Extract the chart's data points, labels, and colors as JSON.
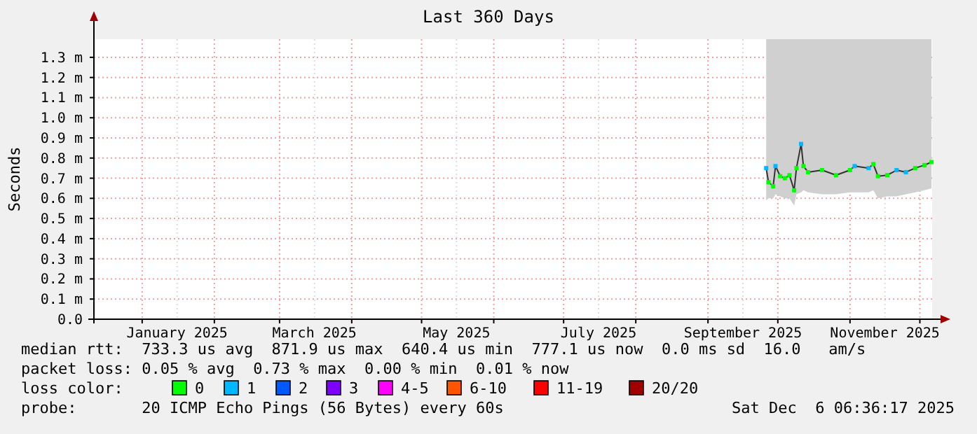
{
  "chart_data": {
    "type": "line",
    "title": "Last 360 Days",
    "ylabel": "Seconds",
    "xlim": [
      "2024-12-11T06:36",
      "2025-12-06T06:36"
    ],
    "xticks": [
      {
        "value": "2025-01-01",
        "label": null
      },
      {
        "value": "2025-01-16",
        "label": "January 2025"
      },
      {
        "value": "2025-02-01",
        "label": null
      },
      {
        "value": "2025-03-01",
        "label": null
      },
      {
        "value": "2025-03-16",
        "label": "March 2025"
      },
      {
        "value": "2025-04-01",
        "label": null
      },
      {
        "value": "2025-05-01",
        "label": null
      },
      {
        "value": "2025-05-16",
        "label": "May 2025"
      },
      {
        "value": "2025-06-01",
        "label": null
      },
      {
        "value": "2025-07-01",
        "label": null
      },
      {
        "value": "2025-07-16",
        "label": "July 2025"
      },
      {
        "value": "2025-08-01",
        "label": null
      },
      {
        "value": "2025-09-01",
        "label": null
      },
      {
        "value": "2025-09-16",
        "label": "September 2025"
      },
      {
        "value": "2025-10-01",
        "label": null
      },
      {
        "value": "2025-11-01",
        "label": null
      },
      {
        "value": "2025-11-16",
        "label": "November 2025"
      },
      {
        "value": "2025-12-01",
        "label": null
      }
    ],
    "ylim": [
      0,
      1.39
    ],
    "yticks": [
      {
        "value": 0,
        "label": "0.0"
      },
      {
        "value": 0.1,
        "label": "0.1 m"
      },
      {
        "value": 0.2,
        "label": "0.2 m"
      },
      {
        "value": 0.3,
        "label": "0.3 m"
      },
      {
        "value": 0.4,
        "label": "0.4 m"
      },
      {
        "value": 0.5,
        "label": "0.5 m"
      },
      {
        "value": 0.6,
        "label": "0.6 m"
      },
      {
        "value": 0.7,
        "label": "0.7 m"
      },
      {
        "value": 0.8,
        "label": "0.8 m"
      },
      {
        "value": 0.9,
        "label": "0.9 m"
      },
      {
        "value": 1.0,
        "label": "1.0 m"
      },
      {
        "value": 1.1,
        "label": "1.1 m"
      },
      {
        "value": 1.2,
        "label": "1.2 m"
      },
      {
        "value": 1.3,
        "label": "1.3 m"
      }
    ],
    "grid": true,
    "legend": "bottom",
    "legend_title": "loss color:",
    "x": [
      "2025-09-26",
      "2025-09-27",
      "2025-09-29",
      "2025-09-30",
      "2025-10-02",
      "2025-10-04",
      "2025-10-06",
      "2025-10-08",
      "2025-10-09",
      "2025-10-11",
      "2025-10-12",
      "2025-10-14",
      "2025-10-20",
      "2025-10-26",
      "2025-11-01",
      "2025-11-03",
      "2025-11-09",
      "2025-11-11",
      "2025-11-13",
      "2025-11-17",
      "2025-11-21",
      "2025-11-25",
      "2025-11-29",
      "2025-12-03",
      "2025-12-06"
    ],
    "series": [
      {
        "marker": "none",
        "color": "#333333",
        "values": [
          0.75,
          0.68,
          0.66,
          0.76,
          0.71,
          0.7,
          0.715,
          0.64,
          0.75,
          0.87,
          0.76,
          0.73,
          0.74,
          0.715,
          0.74,
          0.76,
          0.75,
          0.77,
          0.71,
          0.715,
          0.74,
          0.73,
          0.75,
          0.765,
          0.78
        ],
        "lower": [
          0.59,
          0.6,
          0.6,
          0.62,
          0.61,
          0.6,
          0.6,
          0.565,
          0.62,
          0.63,
          0.64,
          0.63,
          0.62,
          0.62,
          0.63,
          0.63,
          0.63,
          0.64,
          0.6,
          0.61,
          0.61,
          0.62,
          0.63,
          0.64,
          0.65
        ],
        "upper": [
          1.39,
          1.39,
          1.39,
          1.39,
          1.39,
          1.39,
          1.39,
          1.39,
          1.39,
          1.39,
          1.39,
          1.39,
          1.39,
          1.39,
          1.39,
          1.39,
          1.39,
          1.39,
          1.39,
          1.39,
          1.39,
          1.39,
          1.39,
          1.39,
          1.39
        ]
      },
      {
        "type": "scatter",
        "name": "0",
        "color": "#00ff00",
        "values": [
          null,
          0.68,
          0.66,
          null,
          0.71,
          0.7,
          0.715,
          0.64,
          0.75,
          null,
          0.76,
          0.73,
          0.74,
          0.715,
          0.74,
          null,
          null,
          0.77,
          0.71,
          0.715,
          null,
          null,
          0.75,
          0.765,
          0.78
        ]
      },
      {
        "type": "scatter",
        "name": "1",
        "color": "#00b8ff",
        "values": [
          0.75,
          null,
          null,
          0.76,
          null,
          null,
          null,
          null,
          null,
          0.87,
          null,
          null,
          null,
          null,
          null,
          0.76,
          0.75,
          null,
          null,
          null,
          0.74,
          0.73,
          null,
          null,
          null
        ]
      },
      {
        "type": "scatter",
        "name": "2",
        "color": "#0059ff",
        "values": [
          null,
          null,
          null,
          null,
          null,
          null,
          null,
          null,
          null,
          null,
          null,
          null,
          null,
          null,
          null,
          null,
          null,
          null,
          null,
          null,
          null,
          null,
          null,
          null,
          null
        ]
      },
      {
        "type": "scatter",
        "name": "3",
        "color": "#7e00ff",
        "values": [
          null,
          null,
          null,
          null,
          null,
          null,
          null,
          null,
          null,
          null,
          null,
          null,
          null,
          null,
          null,
          null,
          null,
          null,
          null,
          null,
          null,
          null,
          null,
          null,
          null
        ]
      },
      {
        "type": "scatter",
        "name": "4-5",
        "color": "#ff00ff",
        "values": [
          null,
          null,
          null,
          null,
          null,
          null,
          null,
          null,
          null,
          null,
          null,
          null,
          null,
          null,
          null,
          null,
          null,
          null,
          null,
          null,
          null,
          null,
          null,
          null,
          null
        ]
      },
      {
        "type": "scatter",
        "name": "6-10",
        "color": "#ff5500",
        "values": [
          null,
          null,
          null,
          null,
          null,
          null,
          null,
          null,
          null,
          null,
          null,
          null,
          null,
          null,
          null,
          null,
          null,
          null,
          null,
          null,
          null,
          null,
          null,
          null,
          null
        ]
      },
      {
        "type": "scatter",
        "name": "11-19",
        "color": "#ff0000",
        "values": [
          null,
          null,
          null,
          null,
          null,
          null,
          null,
          null,
          null,
          null,
          null,
          null,
          null,
          null,
          null,
          null,
          null,
          null,
          null,
          null,
          null,
          null,
          null,
          null,
          null
        ]
      },
      {
        "type": "scatter",
        "name": "20/20",
        "color": "#a10000",
        "values": [
          null,
          null,
          null,
          null,
          null,
          null,
          null,
          null,
          null,
          null,
          null,
          null,
          null,
          null,
          null,
          null,
          null,
          null,
          null,
          null,
          null,
          null,
          null,
          null,
          null
        ]
      }
    ],
    "marker": "square",
    "annotations": [
      "median rtt:  733.3 us avg  871.9 us max  640.4 us min  777.1 us now  0.0 ms sd  16.0   am/s",
      "packet loss: 0.05 % avg  0.73 % max  0.00 % min  0.01 % now",
      "probe:       20 ICMP Echo Pings (56 Bytes) every 60s",
      "Sat Dec  6 06:36:17 2025"
    ]
  }
}
